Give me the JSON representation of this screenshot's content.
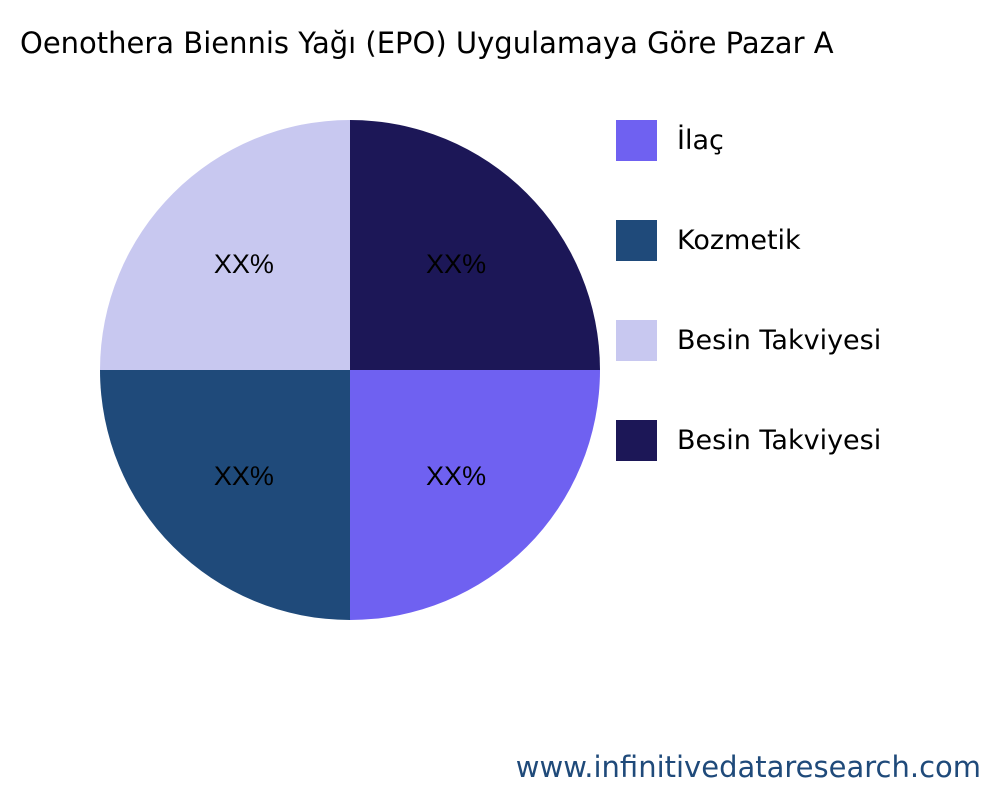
{
  "chart_data": {
    "type": "pie",
    "title": "Oenothera Biennis Yağı (EPO) Uygulamaya Göre Pazar A",
    "legend_position": "right",
    "slices": [
      {
        "name": "İlaç",
        "value": 25,
        "label": "XX%",
        "color": "#6f61f1"
      },
      {
        "name": "Kozmetik",
        "value": 25,
        "label": "XX%",
        "color": "#1f4a7a"
      },
      {
        "name": "Besin Takviyesi",
        "value": 25,
        "label": "XX%",
        "color": "#c8c8f0"
      },
      {
        "name": "Besin Takviyesi",
        "value": 25,
        "label": "XX%",
        "color": "#1c1757"
      }
    ]
  },
  "footer": "www.infinitivedataresearch.com"
}
